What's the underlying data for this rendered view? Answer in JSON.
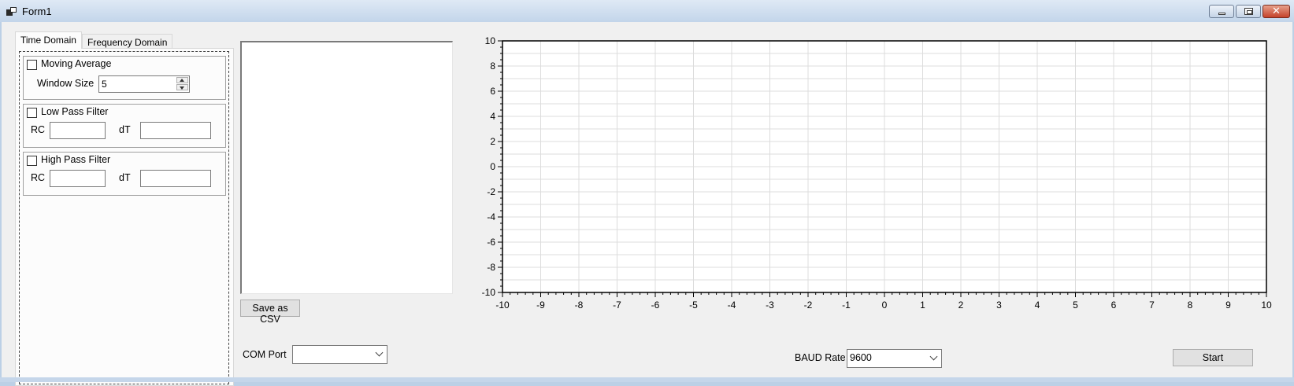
{
  "window": {
    "title": "Form1",
    "buttons": {
      "minimize": "minimize-icon",
      "maximize": "restore-icon",
      "close": "close-icon"
    },
    "close_glyph": "✕"
  },
  "tabs": [
    {
      "label": "Time Domain",
      "active": true
    },
    {
      "label": "Frequency Domain",
      "active": false
    }
  ],
  "filters": {
    "moving_average": {
      "label": "Moving Average",
      "checked": false,
      "window_size_label": "Window Size",
      "window_size_value": "5"
    },
    "low_pass": {
      "label": "Low Pass Filter",
      "checked": false,
      "rc_label": "RC",
      "rc_value": "",
      "dt_label": "dT",
      "dt_value": ""
    },
    "high_pass": {
      "label": "High Pass Filter",
      "checked": false,
      "rc_label": "RC",
      "rc_value": "",
      "dt_label": "dT",
      "dt_value": ""
    }
  },
  "data_list": {
    "items": []
  },
  "save_csv_label": "Save as CSV",
  "com_port": {
    "label": "COM Port",
    "selected": ""
  },
  "baud_rate": {
    "label": "BAUD Rate",
    "selected": "9600"
  },
  "start_label": "Start",
  "chart_data": {
    "type": "line",
    "series": [],
    "xlim": [
      -10,
      10
    ],
    "ylim": [
      -10,
      10
    ],
    "x_ticks": [
      -10,
      -9,
      -8,
      -7,
      -6,
      -5,
      -4,
      -3,
      -2,
      -1,
      0,
      1,
      2,
      3,
      4,
      5,
      6,
      7,
      8,
      9,
      10
    ],
    "y_ticks": [
      -10,
      -8,
      -6,
      -4,
      -2,
      0,
      2,
      4,
      6,
      8,
      10
    ],
    "grid": true,
    "colors": {
      "grid": "#dcdcdc",
      "axis": "#000000",
      "background": "#ffffff"
    }
  }
}
